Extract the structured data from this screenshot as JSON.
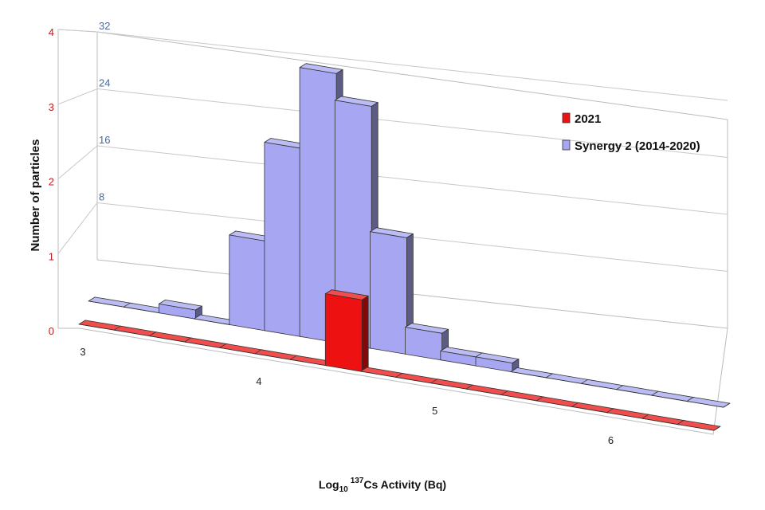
{
  "chart_data": {
    "type": "bar",
    "title": "",
    "xlabel_prefix": "Log",
    "xlabel_sub": "10",
    "xlabel_sup": "137",
    "xlabel_main": "Cs Activity (Bq)",
    "ylabel": "Number of particles",
    "x_ticks": [
      "3",
      "4",
      "5",
      "6"
    ],
    "x_range": [
      3,
      6.6
    ],
    "bin_centers": [
      3.1,
      3.3,
      3.5,
      3.7,
      3.9,
      4.1,
      4.3,
      4.5,
      4.7,
      4.9,
      5.1,
      5.3,
      5.5,
      5.7,
      5.9,
      6.1,
      6.3,
      6.5
    ],
    "y_left": {
      "ticks": [
        "0",
        "1",
        "2",
        "3",
        "4"
      ],
      "ylim": [
        0,
        4
      ],
      "color": "#c0181b"
    },
    "y_back": {
      "ticks": [
        "8",
        "16",
        "24",
        "32"
      ],
      "ylim": [
        0,
        32
      ],
      "color": "#4a6a9a"
    },
    "series": [
      {
        "name": "2021",
        "axis": "left",
        "color": "#ee1111",
        "values": [
          0,
          0,
          0,
          0,
          0,
          0,
          0,
          1,
          0,
          0,
          0,
          0,
          0,
          0,
          0,
          0,
          0,
          0
        ]
      },
      {
        "name": "Synergy 2 (2014-2020)",
        "axis": "back",
        "color": "#a6a6f2",
        "values": [
          0,
          0,
          1,
          0,
          10,
          21,
          30,
          27,
          13,
          3,
          1,
          1,
          0,
          0,
          0,
          0,
          0,
          0
        ]
      }
    ],
    "grid": true,
    "legend_position": "top-right"
  }
}
